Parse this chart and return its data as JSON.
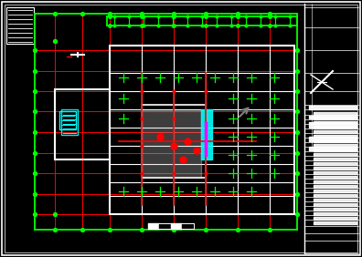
{
  "bg_color": "#000000",
  "white": "#ffffff",
  "cyan": "#00ffff",
  "green": "#00ff00",
  "red": "#ff0000",
  "gray": "#808080",
  "magenta": "#ff00ff",
  "figsize": [
    3.96,
    2.82
  ],
  "dpi": 100
}
